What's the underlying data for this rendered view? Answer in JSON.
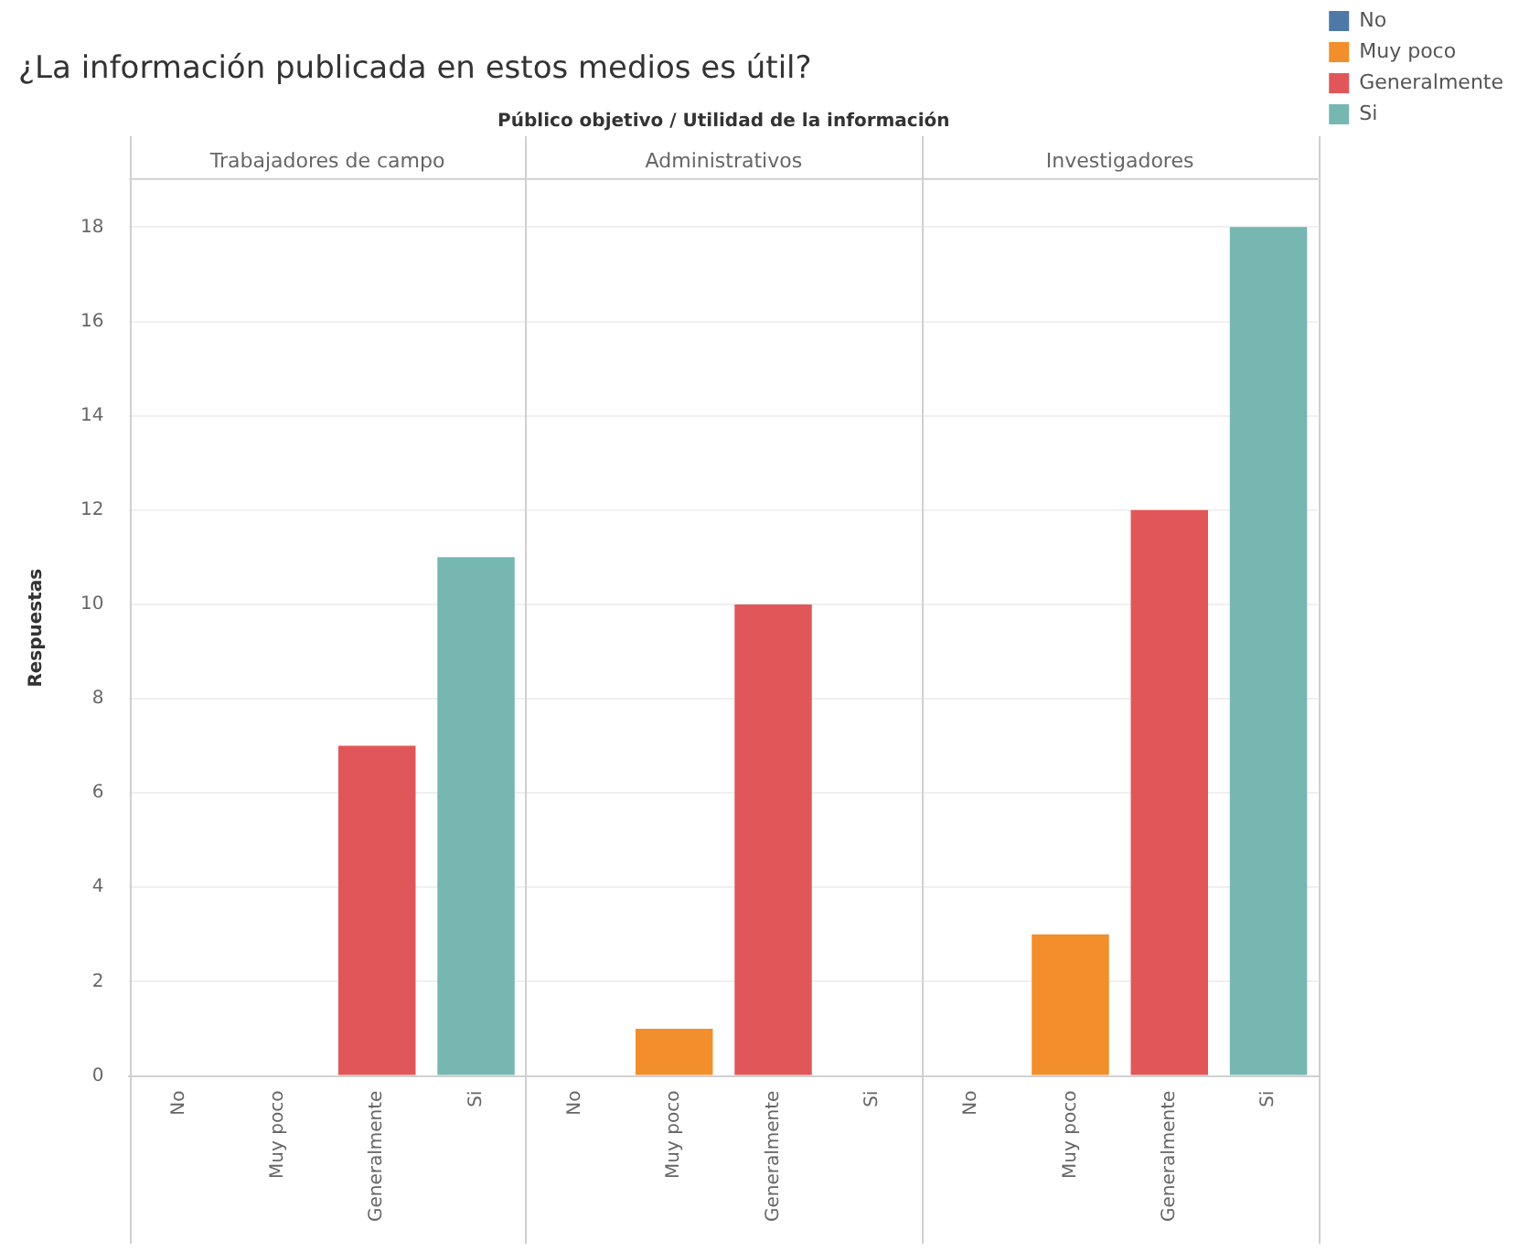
{
  "chart_data": {
    "type": "bar",
    "title": "¿La información publicada en estos medios es útil?",
    "xlabel": "Público objetivo / Utilidad de la información",
    "ylabel": "Respuestas",
    "annotations": [
      "Trabajadores de campo",
      "Administrativos",
      "Investigadores"
    ],
    "categories": [
      "No",
      "Muy poco",
      "Generalmente",
      "Si",
      "No",
      "Muy poco",
      "Generalmente",
      "Si",
      "No",
      "Muy poco",
      "Generalmente",
      "Si"
    ],
    "series": [
      {
        "name": "No",
        "color": "#4e79a7",
        "values": [
          0,
          null,
          null,
          null,
          0,
          null,
          null,
          null,
          0,
          null,
          null,
          null
        ]
      },
      {
        "name": "Muy poco",
        "color": "#f28e2b",
        "values": [
          null,
          0,
          null,
          null,
          null,
          1,
          null,
          null,
          null,
          3,
          null,
          null
        ]
      },
      {
        "name": "Generalmente",
        "color": "#e15759",
        "values": [
          null,
          null,
          7,
          null,
          null,
          null,
          10,
          null,
          null,
          null,
          12,
          null
        ]
      },
      {
        "name": "Si",
        "color": "#76b7b2",
        "values": [
          null,
          null,
          null,
          11,
          null,
          null,
          null,
          0,
          null,
          null,
          null,
          18
        ]
      }
    ],
    "ylim": [
      0,
      19
    ],
    "yticks": [
      0,
      2,
      4,
      6,
      8,
      10,
      12,
      14,
      16,
      18
    ],
    "grid": "y",
    "legend": "top right"
  }
}
